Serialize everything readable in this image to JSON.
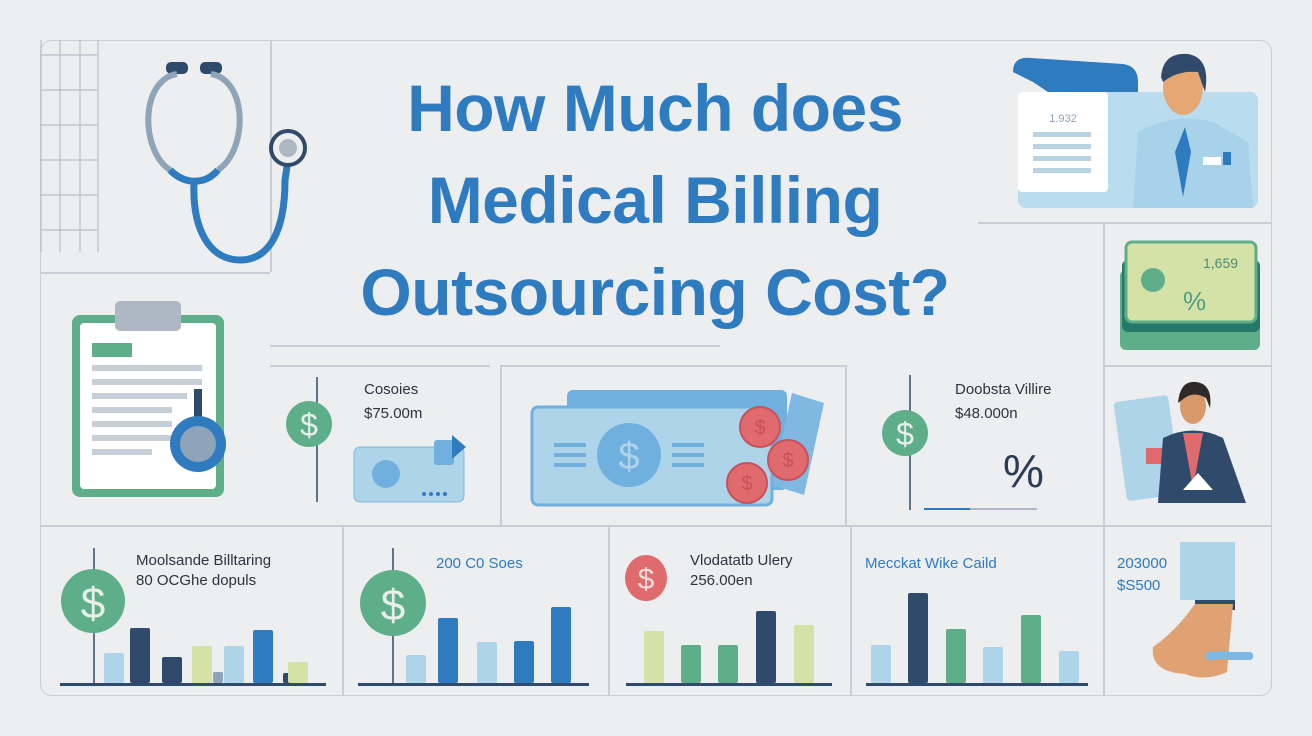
{
  "title": {
    "line1": "How Much does",
    "line2": "Medical Billing",
    "line3": "Outsourcing Cost?"
  },
  "colors": {
    "title": "#2f7bbf",
    "green": "#5fae8a",
    "red": "#e06b6f",
    "navy": "#2f4a6b",
    "blue": "#2f7bbf",
    "light_blue": "#aed4ea",
    "light_green": "#d4e2a8",
    "gray": "#8ea4b8"
  },
  "top_right": {
    "document_number": "1.932",
    "cash_number": "1,659",
    "cash_symbol": "%"
  },
  "cards": [
    {
      "heading": "Cosoies",
      "amount": "$75.00m"
    },
    {
      "heading": "Doobsta Villire",
      "amount": "$48.000n",
      "symbol": "%"
    }
  ],
  "bottom": [
    {
      "heading": "Moolsande Billtaring",
      "amount": "80 OCGhe dopuls"
    },
    {
      "heading": "200 C0 Soes"
    },
    {
      "heading": "Vlodatatb Ulery",
      "amount": "256.00en"
    },
    {
      "heading": "Mecckat Wike Caild"
    },
    {
      "heading": "203000",
      "amount": "$S500"
    }
  ],
  "chart_data": [
    {
      "type": "bar",
      "values": [
        30,
        55,
        26,
        37,
        11,
        37,
        53,
        10,
        21
      ],
      "colors": [
        "light_blue",
        "navy",
        "navy",
        "light_green",
        "gray",
        "light_blue",
        "blue",
        "navy",
        "light_green"
      ]
    },
    {
      "type": "bar",
      "values": [
        28,
        65,
        41,
        42,
        76
      ],
      "colors": [
        "light_blue",
        "blue",
        "light_blue",
        "blue",
        "blue"
      ]
    },
    {
      "type": "bar",
      "values": [
        52,
        38,
        38,
        72,
        58
      ],
      "colors": [
        "light_green",
        "green",
        "green",
        "navy",
        "light_green"
      ]
    },
    {
      "type": "bar",
      "values": [
        38,
        90,
        54,
        36,
        68,
        32
      ],
      "colors": [
        "light_blue",
        "navy",
        "green",
        "light_blue",
        "green",
        "light_blue"
      ]
    }
  ]
}
